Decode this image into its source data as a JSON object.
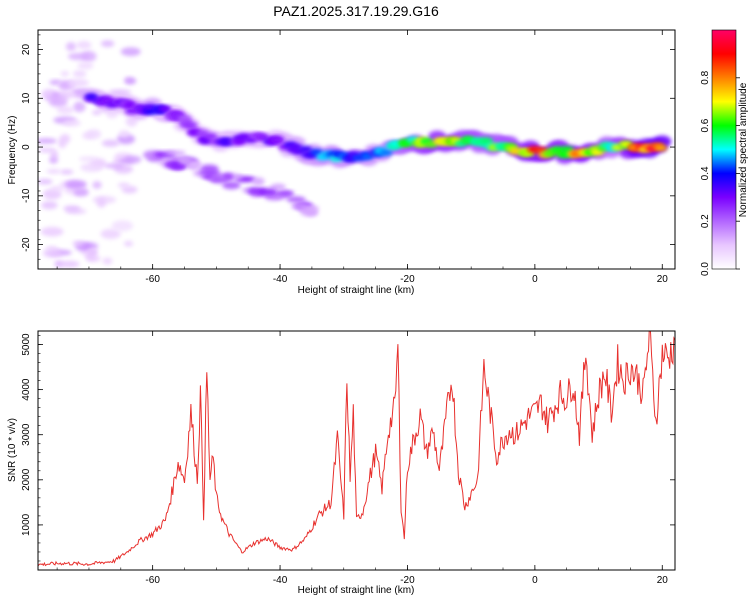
{
  "title": "PAZ1.2025.317.19.29.G16",
  "chart_data": [
    {
      "type": "heatmap",
      "title": "PAZ1.2025.317.19.29.G16",
      "xlabel": "Height of straight line (km)",
      "ylabel": "Frequency (Hz)",
      "xlim": [
        -78,
        22
      ],
      "ylim": [
        -25,
        24
      ],
      "xticks": [
        -60,
        -40,
        -20,
        0,
        20
      ],
      "yticks": [
        -20,
        -10,
        0,
        10,
        20
      ],
      "colorbar": {
        "label": "Normalized spectral amplitude",
        "range": [
          0.0,
          1.0
        ],
        "ticks": [
          0.0,
          0.2,
          0.4,
          0.6,
          0.8
        ],
        "colors": [
          "#ffffff",
          "#e8c6ff",
          "#b266ff",
          "#7a00ff",
          "#0000ff",
          "#00ffff",
          "#00ff00",
          "#ffff00",
          "#ff8000",
          "#ff0000",
          "#ff0066"
        ]
      },
      "ridge": [
        {
          "x": -70,
          "y": 10,
          "amp": 0.35
        },
        {
          "x": -66,
          "y": 9,
          "amp": 0.3
        },
        {
          "x": -63,
          "y": 8,
          "amp": 0.3
        },
        {
          "x": -60,
          "y": 8,
          "amp": 0.38
        },
        {
          "x": -57,
          "y": 7,
          "amp": 0.28
        },
        {
          "x": -55,
          "y": 5,
          "amp": 0.25
        },
        {
          "x": -52,
          "y": 2,
          "amp": 0.3
        },
        {
          "x": -48,
          "y": 1,
          "amp": 0.32
        },
        {
          "x": -44,
          "y": 2,
          "amp": 0.3
        },
        {
          "x": -40,
          "y": 1,
          "amp": 0.32
        },
        {
          "x": -36,
          "y": -1,
          "amp": 0.4
        },
        {
          "x": -32,
          "y": -2,
          "amp": 0.48
        },
        {
          "x": -28,
          "y": -2,
          "amp": 0.4
        },
        {
          "x": -24,
          "y": -1,
          "amp": 0.45
        },
        {
          "x": -20,
          "y": 1,
          "amp": 0.6
        },
        {
          "x": -16,
          "y": 1,
          "amp": 0.72
        },
        {
          "x": -12,
          "y": 1,
          "amp": 0.68
        },
        {
          "x": -8,
          "y": 1,
          "amp": 0.6
        },
        {
          "x": -4,
          "y": 0,
          "amp": 0.62
        },
        {
          "x": 0,
          "y": -1,
          "amp": 0.82
        },
        {
          "x": 4,
          "y": -1,
          "amp": 0.72
        },
        {
          "x": 8,
          "y": -1,
          "amp": 0.78
        },
        {
          "x": 12,
          "y": 0,
          "amp": 0.55
        },
        {
          "x": 16,
          "y": 0,
          "amp": 0.88
        },
        {
          "x": 20,
          "y": 0,
          "amp": 0.9
        }
      ]
    },
    {
      "type": "line",
      "xlabel": "Height of straight line (km)",
      "ylabel": "SNR (10 * v/v)",
      "xlim": [
        -78,
        22
      ],
      "ylim": [
        0,
        5300
      ],
      "xticks": [
        -60,
        -40,
        -20,
        0,
        20
      ],
      "yticks": [
        1000,
        2000,
        3000,
        4000,
        5000
      ],
      "color": "#e8312e",
      "series": [
        {
          "name": "SNR",
          "x": [
            -78,
            -74,
            -70,
            -66,
            -64,
            -62,
            -60,
            -58,
            -57,
            -56,
            -55,
            -54,
            -53,
            -52.5,
            -52,
            -51.5,
            -51,
            -50.5,
            -50,
            -49,
            -48,
            -46,
            -44,
            -42,
            -40,
            -38,
            -36,
            -34,
            -32,
            -31,
            -30,
            -29.5,
            -29,
            -28.5,
            -28,
            -27,
            -26,
            -25,
            -24,
            -23,
            -22,
            -21.5,
            -21,
            -20.5,
            -20,
            -19,
            -18,
            -17,
            -16,
            -15,
            -14,
            -13,
            -12,
            -11,
            -10,
            -9,
            -8,
            -7,
            -6,
            -5,
            -4,
            -3,
            -2,
            -1,
            0,
            1,
            2,
            3,
            4,
            5,
            6,
            7,
            8,
            9,
            10,
            11,
            12,
            13,
            14,
            15,
            16,
            17,
            18,
            19,
            20,
            21,
            22
          ],
          "values": [
            120,
            150,
            130,
            200,
            400,
            650,
            800,
            1100,
            1700,
            2400,
            2000,
            3500,
            2000,
            3900,
            1200,
            4400,
            2000,
            2500,
            1600,
            1100,
            800,
            400,
            600,
            700,
            500,
            450,
            700,
            1200,
            1500,
            2900,
            1200,
            4300,
            2000,
            3500,
            1100,
            1300,
            2000,
            2600,
            1800,
            3100,
            3600,
            4900,
            1400,
            700,
            2300,
            2900,
            3400,
            2600,
            3100,
            2200,
            3300,
            4300,
            2200,
            1400,
            1700,
            2000,
            4500,
            3500,
            2500,
            2900,
            3100,
            3000,
            3200,
            3400,
            3500,
            3700,
            3300,
            3600,
            3900,
            3800,
            4200,
            3000,
            4900,
            3000,
            3900,
            4400,
            3500,
            4600,
            4200,
            4500,
            4300,
            3900,
            5200,
            3300,
            4800,
            4700,
            5100
          ]
        }
      ]
    }
  ]
}
